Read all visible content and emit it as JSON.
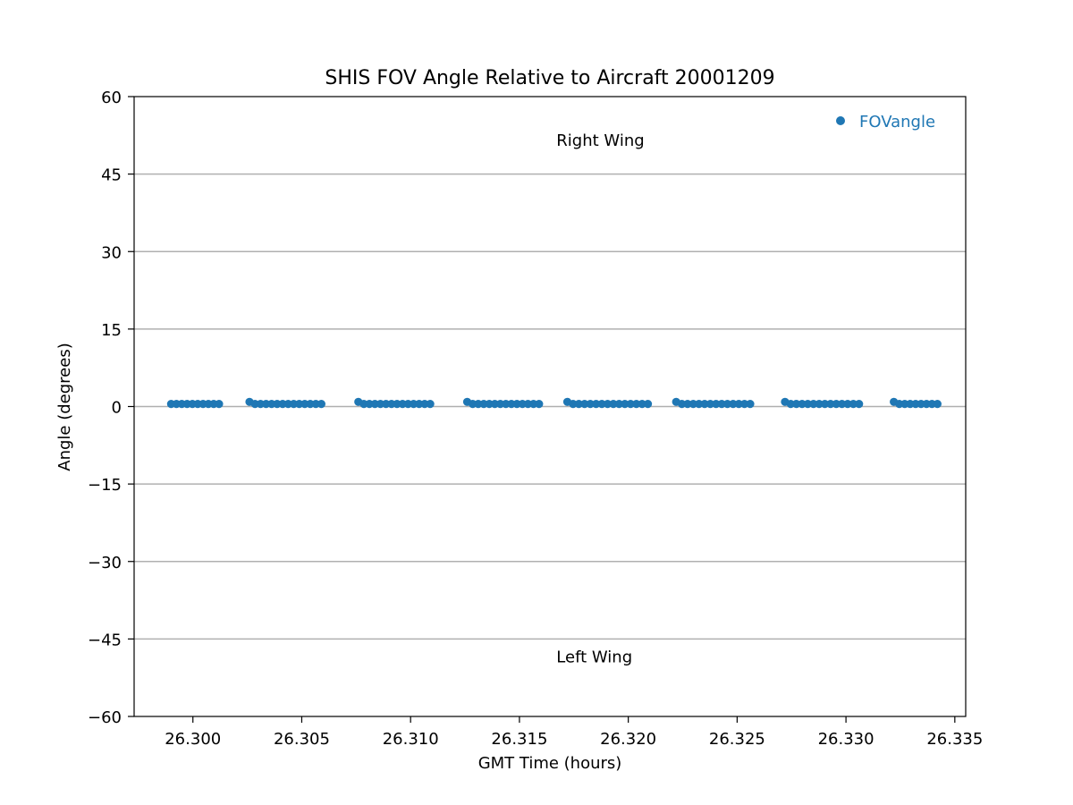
{
  "chart_data": {
    "type": "scatter",
    "title": "SHIS FOV Angle Relative to Aircraft 20001209",
    "xlabel": "GMT Time (hours)",
    "ylabel": "Angle (degrees)",
    "xlim": [
      26.2973,
      26.3355
    ],
    "ylim": [
      -60,
      60
    ],
    "xticks": [
      26.3,
      26.305,
      26.31,
      26.315,
      26.32,
      26.325,
      26.33,
      26.335
    ],
    "xtick_labels": [
      "26.300",
      "26.305",
      "26.310",
      "26.315",
      "26.320",
      "26.325",
      "26.330",
      "26.335"
    ],
    "yticks": [
      -60,
      -45,
      -30,
      -15,
      0,
      15,
      30,
      45,
      60
    ],
    "ytick_labels": [
      "−60",
      "−45",
      "−30",
      "−15",
      "0",
      "15",
      "30",
      "45",
      "60"
    ],
    "grid": "horizontal",
    "legend_position": "top-right",
    "annotations": [
      {
        "text": "Right Wing",
        "x": 26.3167,
        "y": 50.5
      },
      {
        "text": "Left Wing",
        "x": 26.3167,
        "y": -49.5
      }
    ],
    "series": [
      {
        "name": "FOVangle",
        "color": "#1f77b4",
        "segments": [
          {
            "x_start": 26.299,
            "x_end": 26.3012,
            "count": 10,
            "first_y": 0.5,
            "y": 0.5
          },
          {
            "x_start": 26.3026,
            "x_end": 26.3059,
            "count": 14,
            "first_y": 0.9,
            "y": 0.5
          },
          {
            "x_start": 26.3076,
            "x_end": 26.3109,
            "count": 14,
            "first_y": 0.9,
            "y": 0.5
          },
          {
            "x_start": 26.3126,
            "x_end": 26.3159,
            "count": 14,
            "first_y": 0.9,
            "y": 0.5
          },
          {
            "x_start": 26.3172,
            "x_end": 26.3209,
            "count": 15,
            "first_y": 0.9,
            "y": 0.5
          },
          {
            "x_start": 26.3222,
            "x_end": 26.3256,
            "count": 14,
            "first_y": 0.9,
            "y": 0.5
          },
          {
            "x_start": 26.3272,
            "x_end": 26.3306,
            "count": 14,
            "first_y": 0.9,
            "y": 0.5
          },
          {
            "x_start": 26.3322,
            "x_end": 26.3342,
            "count": 9,
            "first_y": 0.9,
            "y": 0.5
          }
        ]
      }
    ]
  }
}
